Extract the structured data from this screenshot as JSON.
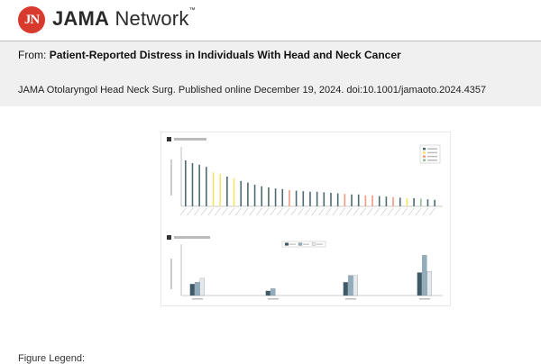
{
  "header": {
    "logo_badge": "JN",
    "logo_text_bold": "JAMA",
    "logo_text_rest": " Network",
    "logo_tm": "™"
  },
  "banner": {
    "from_label": "From:",
    "article_title": "Patient-Reported Distress in Individuals With Head and Neck Cancer",
    "citation": "JAMA Otolaryngol Head Neck Surg. Published online  December 19, 2024. doi:10.1001/jamaoto.2024.4357"
  },
  "figure_legend_heading": "Figure Legend:",
  "colors": {
    "physical": "#4d6b70",
    "emotional": "#f2e36a",
    "practical": "#f09a84",
    "family": "#8fbf8a",
    "group1": "#3d5a66",
    "group2": "#8fadbb",
    "group3": "#e4e9ec"
  },
  "chart_data": [
    {
      "type": "bar",
      "panel": "A",
      "values": [
        85,
        80,
        77,
        73,
        63,
        60,
        55,
        52,
        47,
        44,
        40,
        37,
        35,
        33,
        32,
        30,
        29,
        28,
        27,
        27,
        26,
        25,
        24,
        23,
        22,
        22,
        20,
        20,
        19,
        18,
        17,
        16,
        15,
        15,
        14,
        13,
        12
      ],
      "bar_groups": [
        "physical",
        "physical",
        "physical",
        "physical",
        "emotional",
        "emotional",
        "physical",
        "emotional",
        "physical",
        "physical",
        "physical",
        "physical",
        "physical",
        "physical",
        "physical",
        "practical",
        "physical",
        "physical",
        "physical",
        "physical",
        "physical",
        "physical",
        "physical",
        "practical",
        "physical",
        "physical",
        "practical",
        "practical",
        "physical",
        "physical",
        "practical",
        "physical",
        "emotional",
        "physical",
        "family",
        "physical",
        "physical"
      ],
      "ylim": [
        0,
        100
      ]
    },
    {
      "type": "bar",
      "panel": "B",
      "series": [
        {
          "values": [
            20,
            8,
            23,
            40
          ]
        },
        {
          "values": [
            23,
            12,
            35,
            70
          ]
        },
        {
          "values": [
            30,
            0,
            35,
            42
          ]
        }
      ],
      "ylim": [
        0,
        80
      ]
    }
  ]
}
